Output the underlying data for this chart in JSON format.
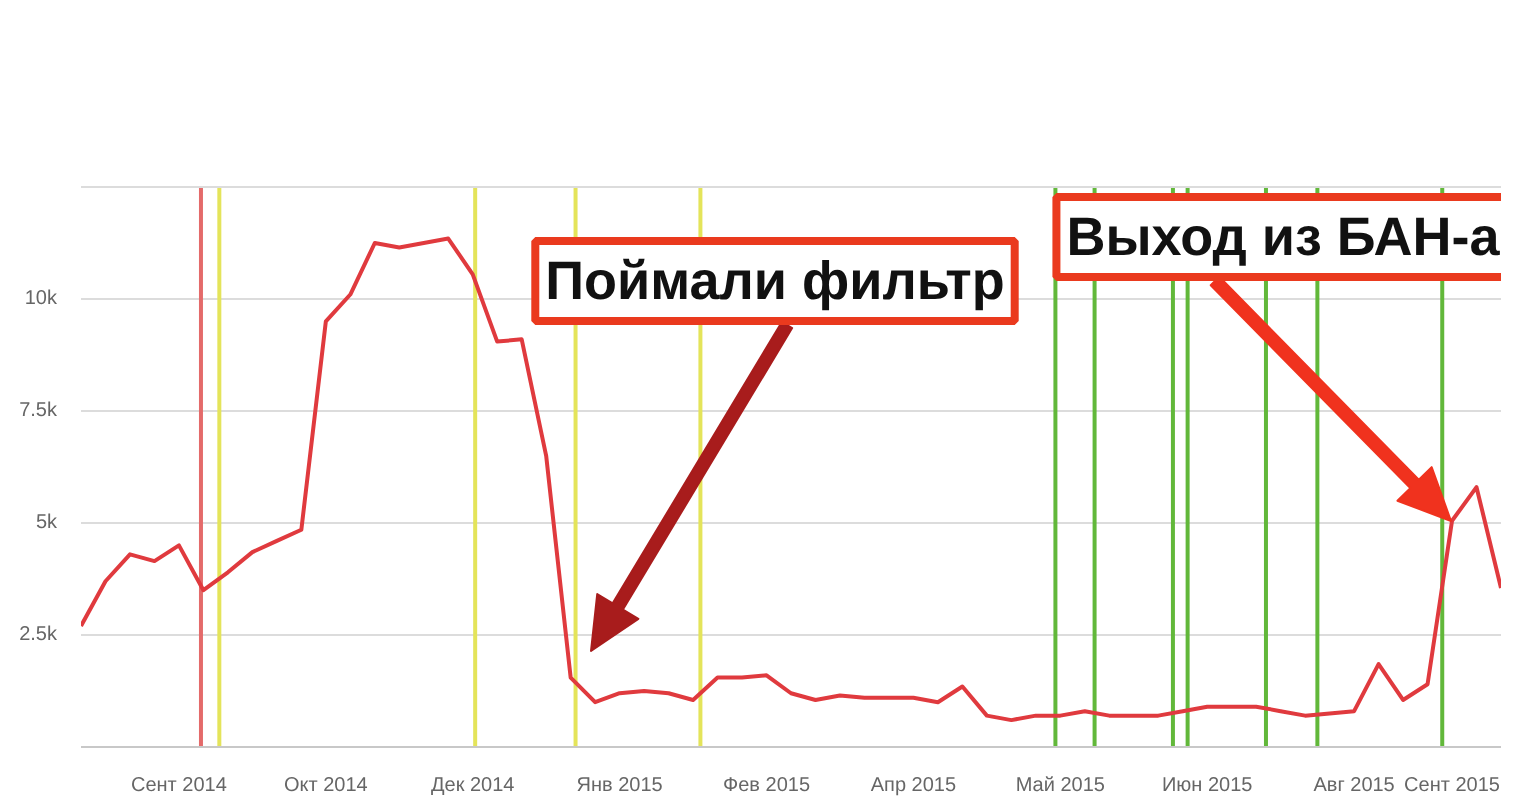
{
  "chart_data": {
    "type": "line",
    "categories": [
      null,
      null,
      null,
      null,
      "Сент 2014",
      null,
      null,
      null,
      null,
      null,
      "Окт 2014",
      null,
      null,
      null,
      null,
      null,
      "Дек 2014",
      null,
      null,
      null,
      null,
      null,
      "Янв 2015",
      null,
      null,
      null,
      null,
      null,
      "Фев 2015",
      null,
      null,
      null,
      null,
      null,
      "Апр 2015",
      null,
      null,
      null,
      null,
      null,
      "Май 2015",
      null,
      null,
      null,
      null,
      null,
      "Июн 2015",
      null,
      null,
      null,
      null,
      null,
      "Авг 2015",
      null,
      null,
      null,
      "Сент 2015",
      null,
      null
    ],
    "series": [
      {
        "color": "#e03a3e",
        "values": [
          2700,
          3700,
          4300,
          4150,
          4500,
          3500,
          3900,
          4350,
          4600,
          4850,
          9500,
          10100,
          11250,
          11150,
          11250,
          11350,
          10550,
          9050,
          9100,
          6500,
          1550,
          1000,
          1200,
          1250,
          1200,
          1050,
          1550,
          1550,
          1600,
          1200,
          1050,
          1150,
          1100,
          1100,
          1100,
          1000,
          1350,
          700,
          600,
          700,
          700,
          800,
          700,
          700,
          700,
          800,
          900,
          900,
          900,
          800,
          700,
          750,
          800,
          1850,
          1050,
          1400,
          5050,
          5800,
          3550
        ]
      }
    ],
    "ylim": [
      0,
      12500
    ],
    "yticks": [
      {
        "value": 2500,
        "label": "2.5k"
      },
      {
        "value": 5000,
        "label": "5k"
      },
      {
        "value": 7500,
        "label": "7.5k"
      },
      {
        "value": 10000,
        "label": "10k"
      }
    ],
    "grid": "y",
    "annotations": [
      "Поймали фильтр",
      "Выход из БАН-а"
    ]
  }
}
